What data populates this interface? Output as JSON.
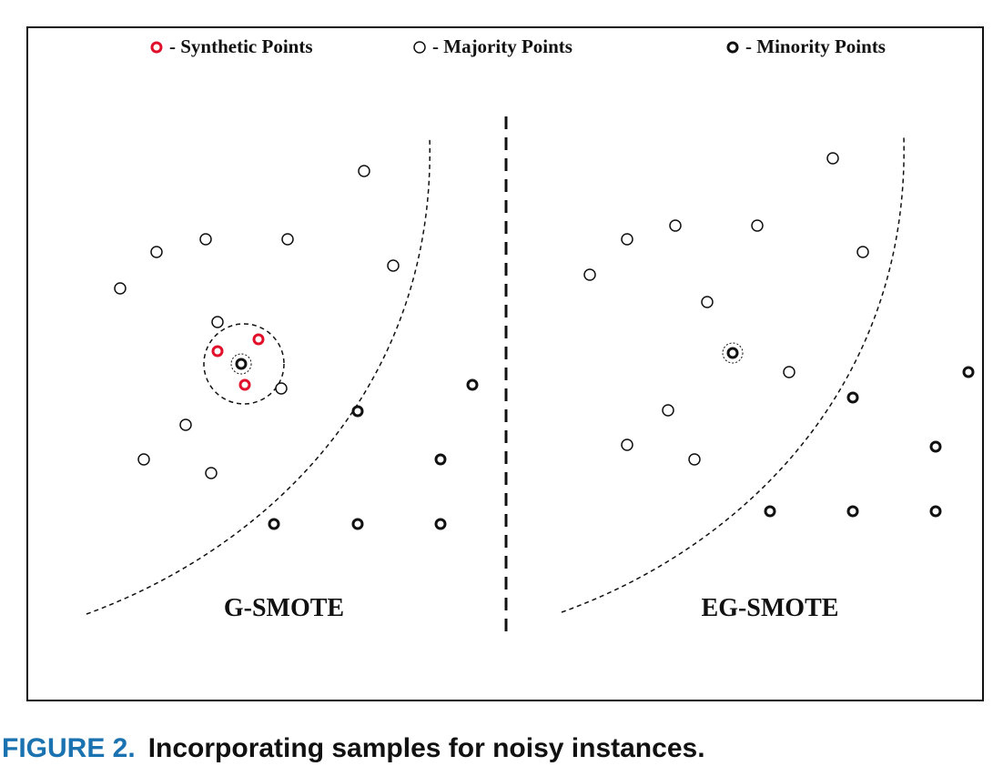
{
  "legend": {
    "synthetic": "- Synthetic Points",
    "majority": "- Majority Points",
    "minority": "- Minority Points"
  },
  "panels": [
    {
      "title": "G-SMOTE"
    },
    {
      "title": "EG-SMOTE"
    }
  ],
  "colors": {
    "synthetic": "#e0102a",
    "caption_label": "#1a72b0"
  },
  "caption": {
    "label": "FIGURE 2.",
    "text": "Incorporating samples for noisy instances."
  }
}
